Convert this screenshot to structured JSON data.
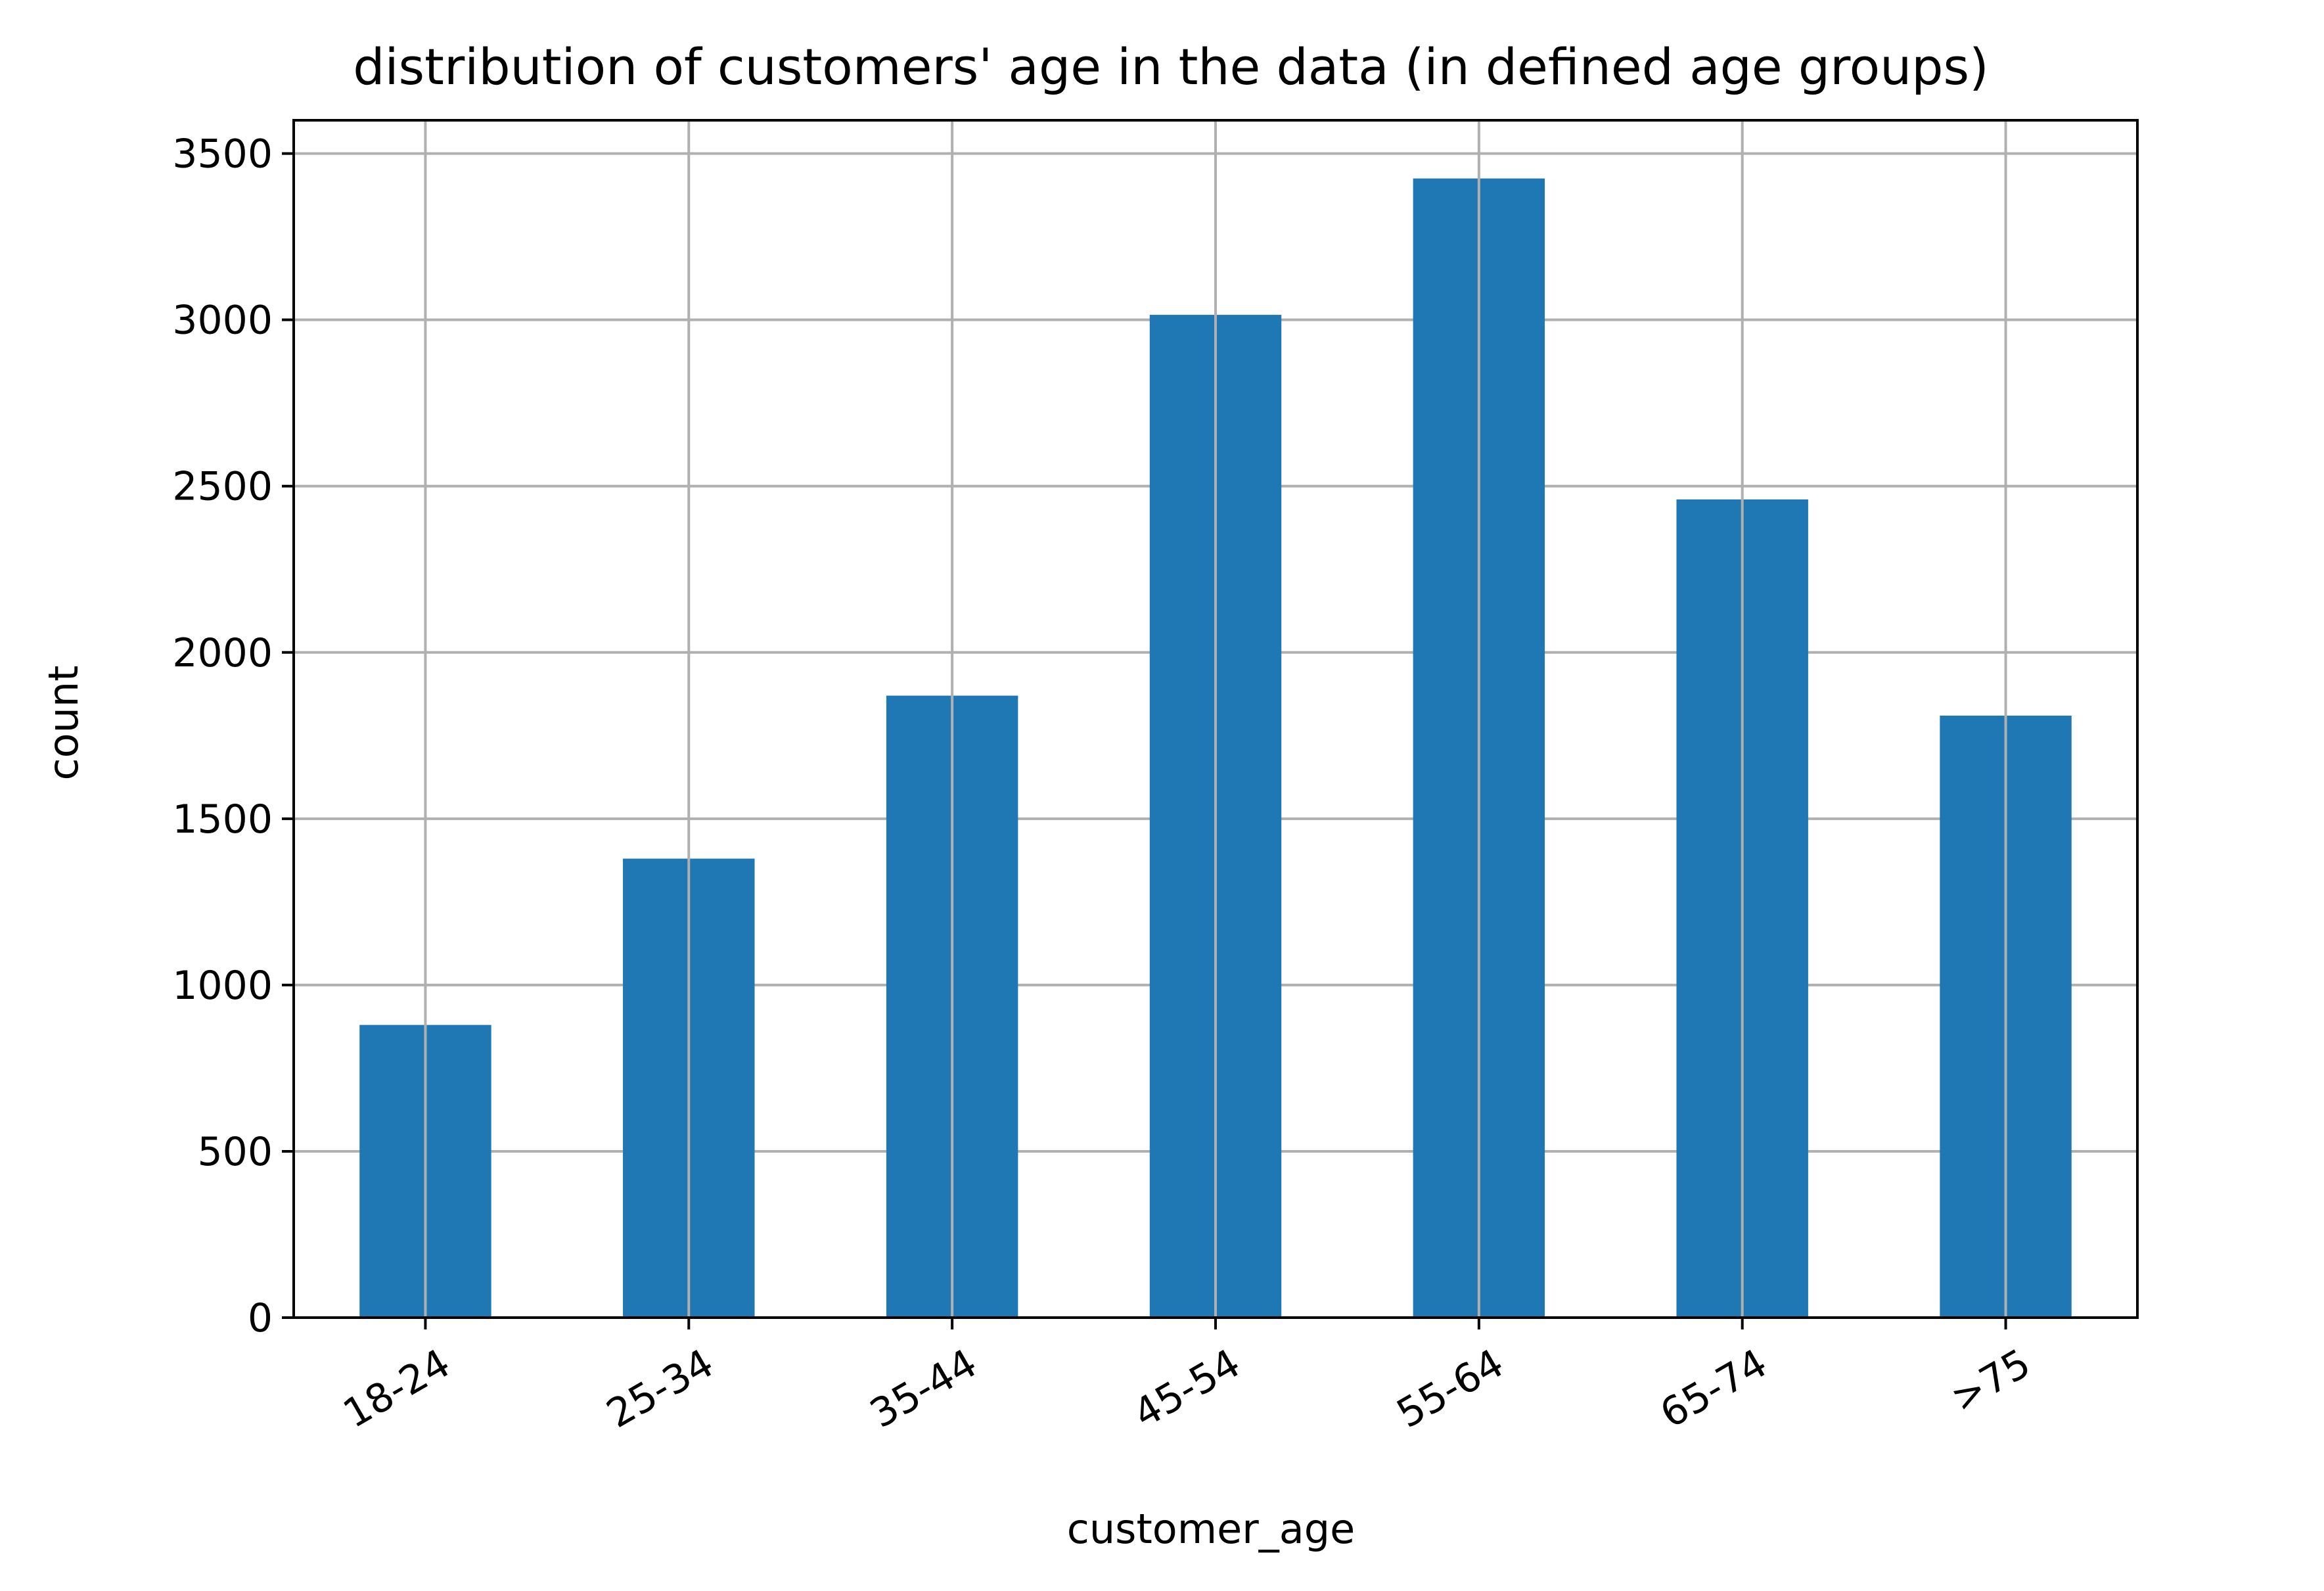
{
  "chart_data": {
    "type": "bar",
    "title": "distribution of customers' age in the data (in defined age groups)",
    "xlabel": "customer_age",
    "ylabel": "count",
    "categories": [
      "18-24",
      "25-34",
      "35-44",
      "45-54",
      "55-64",
      "65-74",
      ">75"
    ],
    "values": [
      880,
      1380,
      1870,
      3015,
      3425,
      2460,
      1810
    ],
    "ylim": [
      0,
      3600
    ],
    "yticks": [
      0,
      500,
      1000,
      1500,
      2000,
      2500,
      3000,
      3500
    ],
    "ytick_labels": [
      "0",
      "500",
      "1000",
      "1500",
      "2000",
      "2500",
      "3000",
      "3500"
    ],
    "grid": true,
    "x_tick_rotation_deg": 30,
    "bar_color": "#1f77b4",
    "grid_color": "#b0b0b0"
  }
}
